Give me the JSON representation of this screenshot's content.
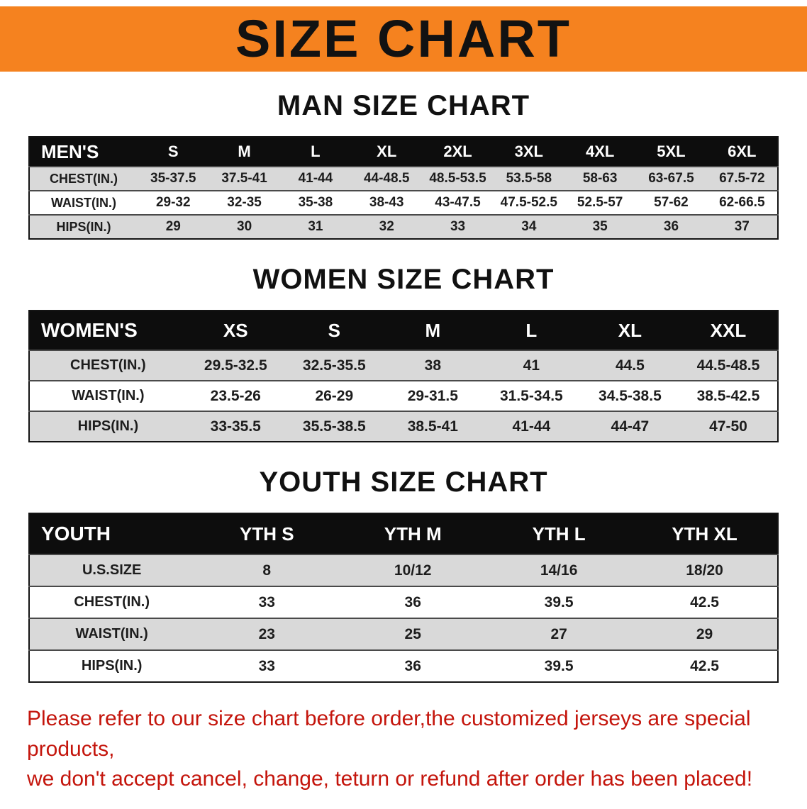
{
  "banner": {
    "title": "SIZE CHART",
    "bg_color": "#F5821F",
    "text_color": "#121212"
  },
  "sections": [
    {
      "heading": "MAN SIZE CHART",
      "table": {
        "header": [
          "MEN'S",
          "S",
          "M",
          "L",
          "XL",
          "2XL",
          "3XL",
          "4XL",
          "5XL",
          "6XL"
        ],
        "rows": [
          [
            "CHEST(IN.)",
            "35-37.5",
            "37.5-41",
            "41-44",
            "44-48.5",
            "48.5-53.5",
            "53.5-58",
            "58-63",
            "63-67.5",
            "67.5-72"
          ],
          [
            "WAIST(IN.)",
            "29-32",
            "32-35",
            "35-38",
            "38-43",
            "43-47.5",
            "47.5-52.5",
            "52.5-57",
            "57-62",
            "62-66.5"
          ],
          [
            "HIPS(IN.)",
            "29",
            "30",
            "31",
            "32",
            "33",
            "34",
            "35",
            "36",
            "37"
          ]
        ]
      }
    },
    {
      "heading": "WOMEN SIZE CHART",
      "table": {
        "header": [
          "WOMEN'S",
          "XS",
          "S",
          "M",
          "L",
          "XL",
          "XXL"
        ],
        "rows": [
          [
            "CHEST(IN.)",
            "29.5-32.5",
            "32.5-35.5",
            "38",
            "41",
            "44.5",
            "44.5-48.5"
          ],
          [
            "WAIST(IN.)",
            "23.5-26",
            "26-29",
            "29-31.5",
            "31.5-34.5",
            "34.5-38.5",
            "38.5-42.5"
          ],
          [
            "HIPS(IN.)",
            "33-35.5",
            "35.5-38.5",
            "38.5-41",
            "41-44",
            "44-47",
            "47-50"
          ]
        ]
      }
    },
    {
      "heading": "YOUTH SIZE CHART",
      "table": {
        "header": [
          "YOUTH",
          "YTH S",
          "YTH M",
          "YTH L",
          "YTH XL"
        ],
        "rows": [
          [
            "U.S.SIZE",
            "8",
            "10/12",
            "14/16",
            "18/20"
          ],
          [
            "CHEST(IN.)",
            "33",
            "36",
            "39.5",
            "42.5"
          ],
          [
            "WAIST(IN.)",
            "23",
            "25",
            "27",
            "29"
          ],
          [
            "HIPS(IN.)",
            "33",
            "36",
            "39.5",
            "42.5"
          ]
        ]
      }
    }
  ],
  "disclaimer": {
    "color": "#C4150C",
    "lines": [
      "Please refer to our size chart before order,the customized jerseys are special products,",
      "we don't accept cancel, change, teturn or refund after order has been placed!"
    ]
  }
}
